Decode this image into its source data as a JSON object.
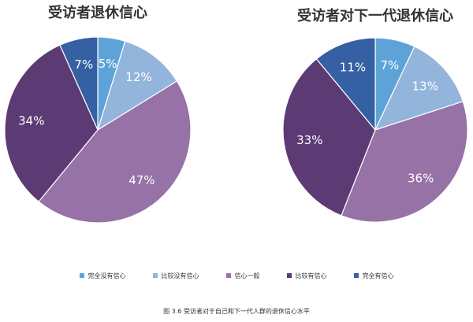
{
  "figure_caption": "图 3.6 受访者对于自己和下一代人群的退休信心水平",
  "legend": [
    {
      "label": "完全没有信心",
      "color": "#5ea3d7"
    },
    {
      "label": "比较没有信心",
      "color": "#93b5dc"
    },
    {
      "label": "信心一般",
      "color": "#9672a6"
    },
    {
      "label": "比较有信心",
      "color": "#5c3a74"
    },
    {
      "label": "完全有信心",
      "color": "#3560a3"
    }
  ],
  "chart_data": [
    {
      "type": "pie",
      "title": "受访者退休信心",
      "categories": [
        "完全没有信心",
        "比较没有信心",
        "信心一般",
        "比较有信心",
        "完全有信心"
      ],
      "values": [
        5,
        12,
        47,
        34,
        7
      ],
      "labels": [
        "5%",
        "12%",
        "47%",
        "34%",
        "7%"
      ],
      "start_angle_deg_clockwise_from_top": 0
    },
    {
      "type": "pie",
      "title": "受访者对下一代退休信心",
      "categories": [
        "完全没有信心",
        "比较没有信心",
        "信心一般",
        "比较有信心",
        "完全有信心"
      ],
      "values": [
        7,
        13,
        36,
        33,
        11
      ],
      "labels": [
        "7%",
        "13%",
        "36%",
        "33%",
        "11%"
      ],
      "start_angle_deg_clockwise_from_top": 0
    }
  ]
}
